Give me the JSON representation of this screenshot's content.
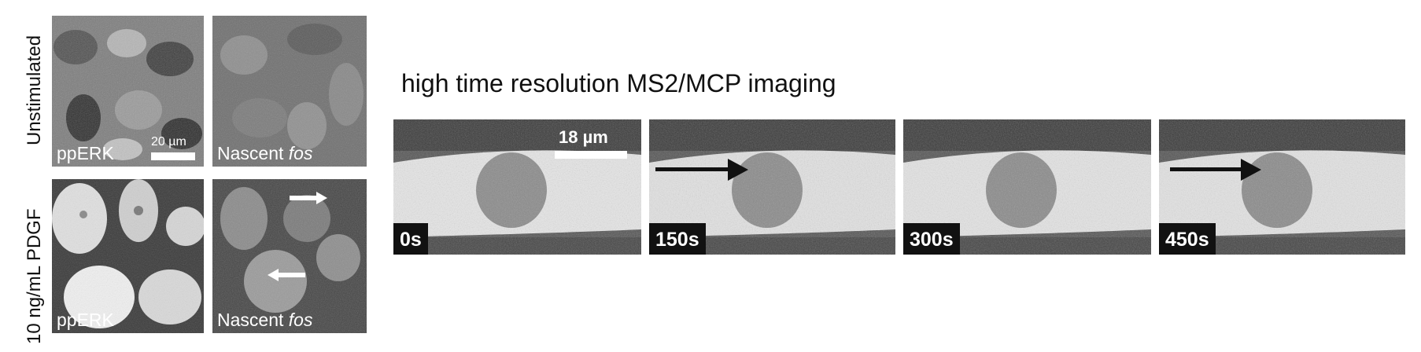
{
  "row_labels": {
    "top": "Unstimulated",
    "bottom": "10 ng/mL PDGF"
  },
  "left_panels": {
    "ppERK_label": "ppERK",
    "nascent_label_prefix": "Nascent ",
    "nascent_label_italic": "fos",
    "scale_bar_small": "20 µm"
  },
  "right_section": {
    "heading": "high time resolution MS2/MCP imaging",
    "scale_bar": "18 µm",
    "frames": [
      {
        "time": "0s"
      },
      {
        "time": "150s"
      },
      {
        "time": "300s"
      },
      {
        "time": "450s"
      }
    ]
  }
}
